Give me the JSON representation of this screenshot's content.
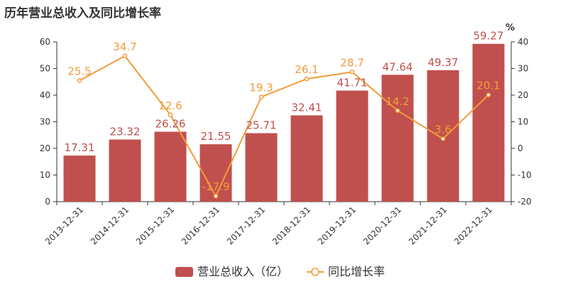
{
  "chart_data": {
    "type": "bar",
    "title": "历年营业总收入及同比增长率",
    "categories": [
      "2013-12-31",
      "2014-12-31",
      "2015-12-31",
      "2016-12-31",
      "2017-12-31",
      "2018-12-31",
      "2019-12-31",
      "2020-12-31",
      "2021-12-31",
      "2022-12-31"
    ],
    "series": [
      {
        "name": "营业总收入（亿）",
        "type": "bar",
        "axis": "left",
        "color": "#c0504d",
        "values": [
          17.31,
          23.32,
          26.26,
          21.55,
          25.71,
          32.41,
          41.71,
          47.64,
          49.37,
          59.27
        ]
      },
      {
        "name": "同比增长率",
        "type": "line",
        "axis": "right",
        "color": "#f29c38",
        "values": [
          25.5,
          34.7,
          12.6,
          -17.9,
          19.3,
          26.1,
          28.7,
          14.2,
          3.6,
          20.1
        ]
      }
    ],
    "y_left": {
      "range": [
        0,
        60
      ],
      "ticks": [
        "0",
        "10",
        "20",
        "30",
        "40",
        "50",
        "60"
      ]
    },
    "y_right": {
      "range": [
        -20,
        40
      ],
      "ticks": [
        "-20",
        "-10",
        "0",
        "10",
        "20",
        "30",
        "40"
      ],
      "unit": "%"
    },
    "grid": false,
    "legend_position": "bottom"
  }
}
